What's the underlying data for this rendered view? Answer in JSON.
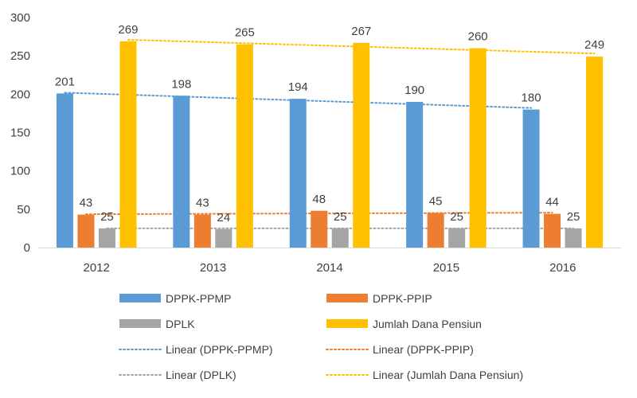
{
  "chart_data": {
    "type": "bar",
    "title": "",
    "xlabel": "",
    "ylabel": "",
    "ylim": [
      0,
      300
    ],
    "yticks": [
      0,
      50,
      100,
      150,
      200,
      250,
      300
    ],
    "grid": false,
    "legend_position": "bottom",
    "categories": [
      "2012",
      "2013",
      "2014",
      "2015",
      "2016"
    ],
    "series": [
      {
        "name": "DPPK-PPMP",
        "color": "#5B9BD5",
        "values": [
          201,
          198,
          194,
          190,
          180
        ]
      },
      {
        "name": "DPPK-PPIP",
        "color": "#ED7D31",
        "values": [
          43,
          43,
          48,
          45,
          44
        ]
      },
      {
        "name": "DPLK",
        "color": "#A5A5A5",
        "values": [
          25,
          24,
          25,
          25,
          25
        ]
      },
      {
        "name": "Jumlah Dana Pensiun",
        "color": "#FFC000",
        "values": [
          269,
          265,
          267,
          260,
          249
        ]
      }
    ],
    "trendlines": [
      {
        "name": "Linear (DPPK-PPMP)",
        "series": "DPPK-PPMP",
        "color": "#5B9BD5",
        "start": 202,
        "end": 182
      },
      {
        "name": "Linear (DPPK-PPIP)",
        "series": "DPPK-PPIP",
        "color": "#ED7D31",
        "start": 43.5,
        "end": 45.5
      },
      {
        "name": "Linear (DPLK)",
        "series": "DPLK",
        "color": "#A5A5A5",
        "start": 25,
        "end": 25
      },
      {
        "name": "Linear (Jumlah Dana Pensiun)",
        "series": "Jumlah Dana Pensiun",
        "color": "#FFC000",
        "start": 271,
        "end": 253
      }
    ]
  }
}
